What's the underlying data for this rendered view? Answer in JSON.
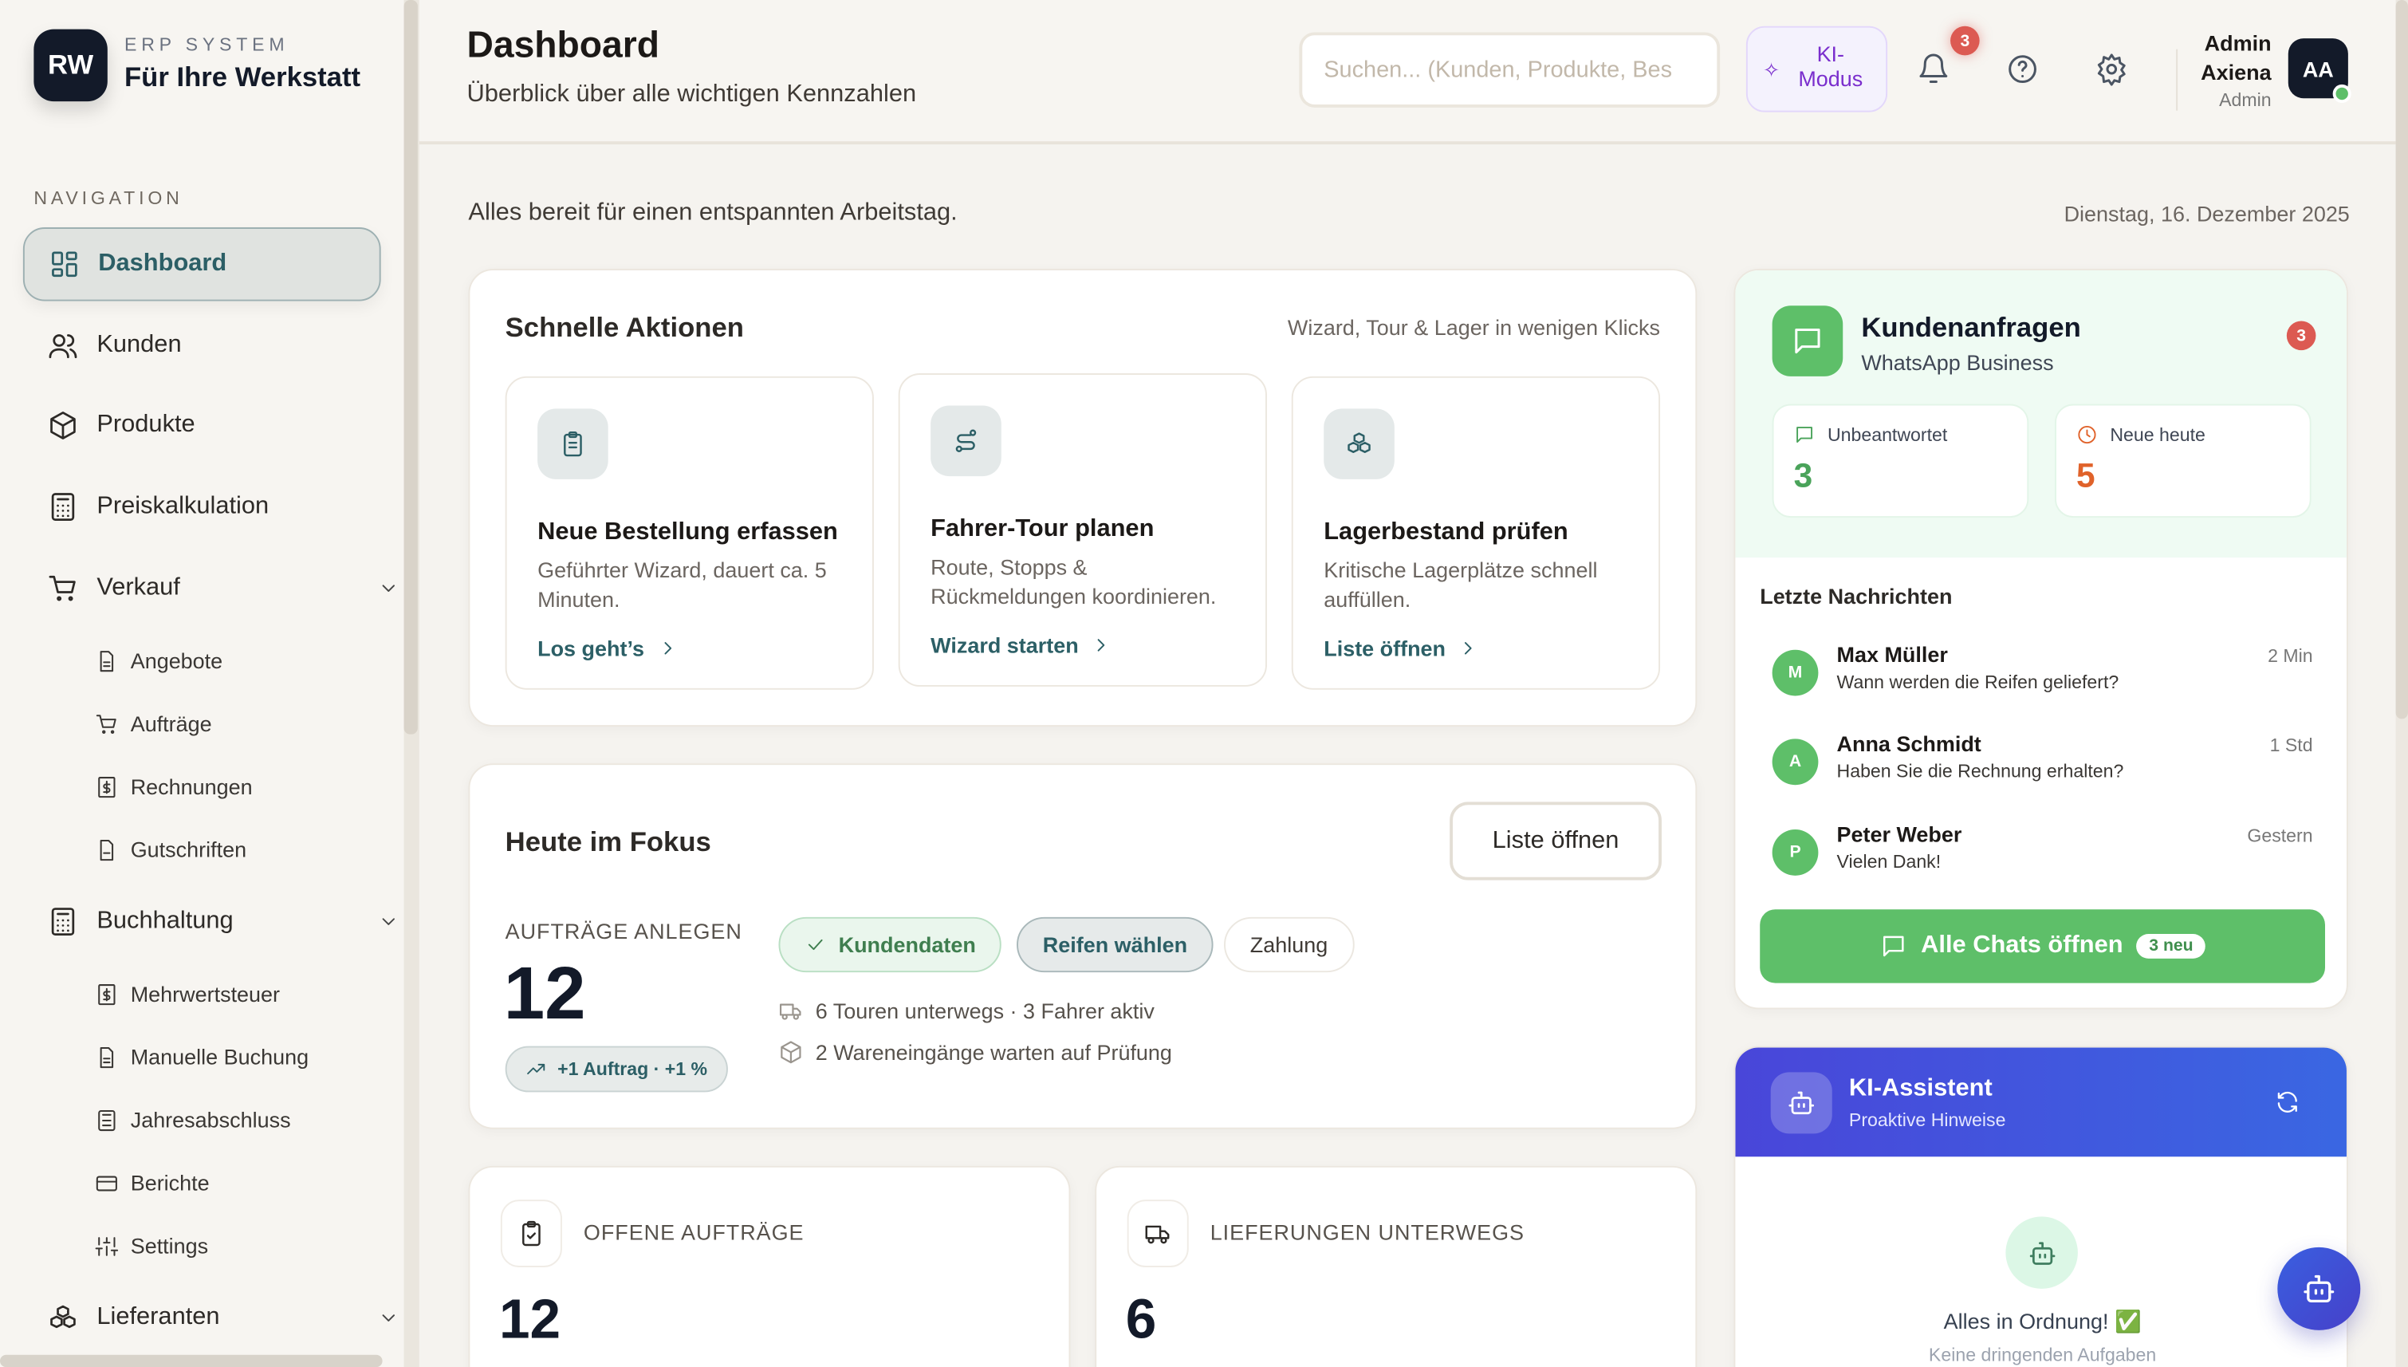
{
  "sidebar": {
    "logo_initials": "RW",
    "logo_kicker": "ERP SYSTEM",
    "logo_title": "Für Ihre Werkstatt",
    "section": "NAVIGATION",
    "items": [
      {
        "label": "Dashboard",
        "icon": "grid-icon"
      },
      {
        "label": "Kunden",
        "icon": "users-icon"
      },
      {
        "label": "Produkte",
        "icon": "box-icon"
      },
      {
        "label": "Preiskalkulation",
        "icon": "calculator-icon"
      },
      {
        "label": "Verkauf",
        "icon": "cart-icon"
      },
      {
        "label": "Buchhaltung",
        "icon": "calculator-icon"
      },
      {
        "label": "Lieferanten",
        "icon": "boxes-icon"
      }
    ],
    "verkauf_sub": [
      "Angebote",
      "Aufträge",
      "Rechnungen",
      "Gutschriften"
    ],
    "buchhaltung_sub": [
      "Mehrwertsteuer",
      "Manuelle Buchung",
      "Jahresabschluss",
      "Berichte",
      "Settings"
    ]
  },
  "header": {
    "title": "Dashboard",
    "subtitle": "Überblick über alle wichtigen Kennzahlen",
    "search_placeholder": "Suchen... (Kunden, Produkte, Bes",
    "ki_line1": "KI-",
    "ki_line2": "Modus",
    "notifications": "3",
    "user_first": "Admin",
    "user_last": "Axiena",
    "user_role": "Admin",
    "avatar": "AA"
  },
  "greeting": "Alles bereit für einen entspannten Arbeitstag.",
  "date": "Dienstag, 16. Dezember 2025",
  "quick": {
    "title": "Schnelle Aktionen",
    "hint": "Wizard, Tour & Lager in wenigen Klicks",
    "cards": [
      {
        "title": "Neue Bestellung erfassen",
        "desc": "Geführter Wizard, dauert ca. 5 Minuten.",
        "link": "Los geht’s"
      },
      {
        "title": "Fahrer-Tour planen",
        "desc": "Route, Stopps & Rückmeldungen koordinieren.",
        "link": "Wizard starten"
      },
      {
        "title": "Lagerbestand prüfen",
        "desc": "Kritische Lagerplätze schnell auffüllen.",
        "link": "Liste öffnen"
      }
    ]
  },
  "focus": {
    "title": "Heute im Fokus",
    "button": "Liste öffnen",
    "kicker": "AUFTRÄGE ANLEGEN",
    "value": "12",
    "trend": "+1 Auftrag · +1 %",
    "steps": [
      "Kundendaten",
      "Reifen wählen",
      "Zahlung"
    ],
    "info1": "6 Touren unterwegs · 3 Fahrer aktiv",
    "info2": "2 Wareneingänge warten auf Prüfung"
  },
  "stats": [
    {
      "label": "OFFENE AUFTRÄGE",
      "value": "12"
    },
    {
      "label": "LIEFERUNGEN UNTERWEGS",
      "value": "6"
    }
  ],
  "requests": {
    "title": "Kundenanfragen",
    "subtitle": "WhatsApp Business",
    "badge": "3",
    "unanswered_label": "Unbeantwortet",
    "unanswered": "3",
    "new_label": "Neue heute",
    "new": "5",
    "recent": "Letzte Nachrichten",
    "messages": [
      {
        "initial": "M",
        "name": "Max Müller",
        "text": "Wann werden die Reifen geliefert?",
        "time": "2 Min"
      },
      {
        "initial": "A",
        "name": "Anna Schmidt",
        "text": "Haben Sie die Rechnung erhalten?",
        "time": "1 Std"
      },
      {
        "initial": "P",
        "name": "Peter Weber",
        "text": "Vielen Dank!",
        "time": "Gestern"
      }
    ],
    "button": "Alle Chats öffnen",
    "button_badge": "3 neu"
  },
  "assistant": {
    "title": "KI-Assistent",
    "subtitle": "Proaktive Hinweise",
    "status": "Alles in Ordnung! ✅",
    "status_sub": "Keine dringenden Aufgaben"
  },
  "colors": {
    "accent": "#2c5f66",
    "green": "#5ebf69",
    "orange": "#e0622a",
    "indigo": "#4b46d8",
    "badge": "#dc5a52"
  }
}
